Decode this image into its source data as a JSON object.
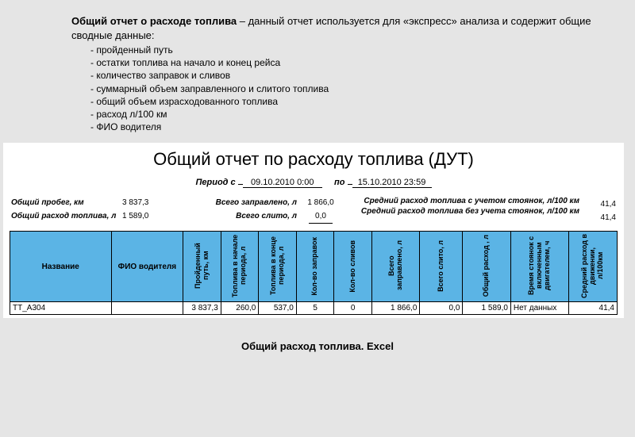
{
  "intro": {
    "title_bold": "Общий отчет о расходе топлива",
    "title_rest": " – данный отчет используется для «экспресс» анализа и содержит общие сводные данные:",
    "bullets": [
      "пройденный путь",
      "остатки топлива на начало и конец рейса",
      "количество заправок и сливов",
      "суммарный объем заправленного и слитого топлива",
      "общий объем израсходованного топлива",
      "расход л/100 км",
      "ФИО водителя"
    ]
  },
  "report": {
    "title": "Общий отчет по расходу топлива (ДУТ)",
    "period_label": "Период  с",
    "date_from": "09.10.2010 0:00",
    "period_to_label": "по",
    "date_to": "15.10.2010 23:59",
    "summary": {
      "l_mileage": "Общий пробег, км",
      "v_mileage": "3 837,3",
      "l_total_fuel": "Общий расход топлива, л",
      "v_total_fuel": "1 589,0",
      "l_refueled": "Всего заправлено, л",
      "v_refueled": "1 866,0",
      "l_drained": "Всего слито, л",
      "v_drained": "0,0",
      "l_avg_with": "Средний расход топлива с учетом стоянок, л/100 км",
      "v_avg_with": "41,4",
      "l_avg_without": "Средний расход топлива без учета стоянок, л/100 км",
      "v_avg_without": "41,4"
    },
    "columns": {
      "name": "Название",
      "fio": "ФИО водителя",
      "dist": "Пройденный путь, км",
      "fuel_start": "Топлива в начале периода, л",
      "fuel_end": "Топлива в конце периода, л",
      "refuels": "Кол-во заправок",
      "drains": "Кол-во сливов",
      "total_refueled": "Всего заправлено, л",
      "total_drained": "Всего слито, л",
      "total_consumed": "Общий расход , л",
      "idle_time": "Время стоянок с включенным двигателем, ч",
      "avg_moving": "Средний расход в движении, л/100км"
    },
    "row": {
      "name": "ТТ_А304",
      "fio": "",
      "dist": "3 837,3",
      "fuel_start": "260,0",
      "fuel_end": "537,0",
      "refuels": "5",
      "drains": "0",
      "total_refueled": "1 866,0",
      "total_drained": "0,0",
      "total_consumed": "1 589,0",
      "idle_time": "Нет данных",
      "avg_moving": "41,4"
    },
    "colwidths": [
      "118",
      "84",
      "44",
      "44",
      "44",
      "44",
      "44",
      "56",
      "50",
      "56",
      "68",
      "56"
    ],
    "header_bg": "#5bb4e5"
  },
  "caption": "Общий расход топлива. Excel"
}
